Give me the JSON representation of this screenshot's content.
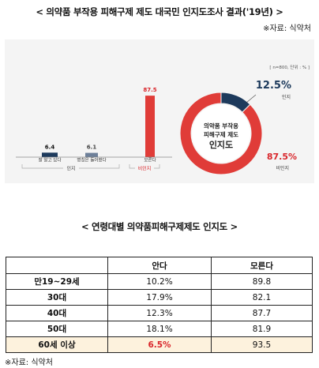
{
  "title": "< 의약품 부작용 피해구제 제도 대국민 인지도조사 결과('19년) >",
  "source": "※자료: 식약처",
  "colors": {
    "navy": "#1d3a5c",
    "slate": "#6d7f99",
    "red": "#e03c38"
  },
  "chart_data": [
    {
      "type": "bar",
      "categories": [
        "잘 알고 있다",
        "명칭은 들어봤다",
        "모른다"
      ],
      "values": [
        6.4,
        6.1,
        87.5
      ],
      "groups": [
        {
          "label": "인지",
          "categories": [
            "잘 알고 있다",
            "명칭은 들어봤다"
          ]
        },
        {
          "label": "비인지",
          "categories": [
            "모른다"
          ]
        }
      ],
      "ylim": [
        0,
        100
      ]
    },
    {
      "type": "pie",
      "labels": [
        "인지",
        "비인지"
      ],
      "values": [
        12.5,
        87.5
      ],
      "value_labels": [
        "12.5%",
        "87.5%"
      ],
      "center_text": [
        "의약품 부작용",
        "피해구제 제도",
        "인지도"
      ],
      "note": "[ n=800, 단위 : % ]"
    }
  ],
  "table": {
    "title": "< 연령대별 의약품피해구제제도 인지도 >",
    "headers": [
      "",
      "안다",
      "모른다"
    ],
    "rows": [
      [
        "만19~29세",
        "10.2%",
        "89.8"
      ],
      [
        "30대",
        "17.9%",
        "82.1"
      ],
      [
        "40대",
        "12.3%",
        "87.7"
      ],
      [
        "50대",
        "18.1%",
        "81.9"
      ],
      [
        "60세 이상",
        "6.5%",
        "93.5"
      ]
    ],
    "source": "※자료: 식약처"
  }
}
